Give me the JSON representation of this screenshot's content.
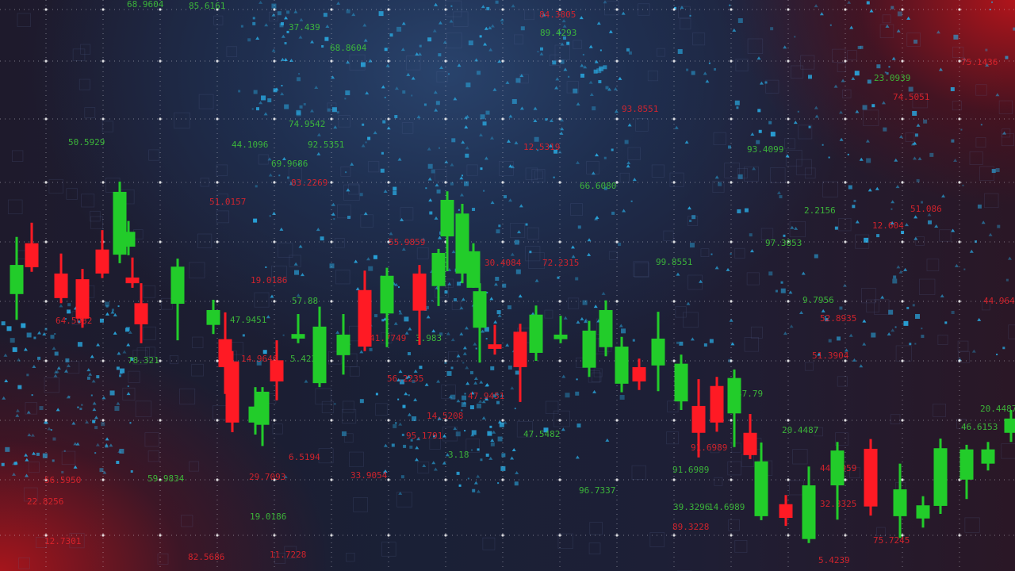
{
  "colors": {
    "up": "#22cc2a",
    "down": "#ff1a24",
    "background": "#1c2238",
    "accent_blue": "#29a8e0",
    "grid_dot": "#e8e8f0"
  },
  "chart_data": {
    "type": "candlestick",
    "title": "",
    "xlabel": "",
    "ylabel": "",
    "ylim": [
      0,
      100
    ],
    "grid": true,
    "legend": "none",
    "candles": [
      {
        "o": 48.5,
        "h": 58.5,
        "l": 44.0,
        "c": 53.6
      },
      {
        "o": 57.4,
        "h": 61.0,
        "l": 52.4,
        "c": 53.2
      },
      {
        "o": 52.1,
        "h": 55.6,
        "l": 46.9,
        "c": 47.8
      },
      {
        "o": 51.1,
        "h": 52.9,
        "l": 42.6,
        "c": 44.2
      },
      {
        "o": 56.3,
        "h": 59.7,
        "l": 51.3,
        "c": 52.1
      },
      {
        "o": 55.4,
        "h": 68.2,
        "l": 53.9,
        "c": 66.4
      },
      {
        "o": 56.8,
        "h": 61.3,
        "l": 55.3,
        "c": 59.4
      },
      {
        "o": 51.4,
        "h": 54.9,
        "l": 49.6,
        "c": 50.4
      },
      {
        "o": 46.9,
        "h": 50.4,
        "l": 39.9,
        "c": 43.2
      },
      {
        "o": 46.8,
        "h": 54.7,
        "l": 40.4,
        "c": 53.3
      },
      {
        "o": 43.1,
        "h": 47.5,
        "l": 41.5,
        "c": 45.7
      },
      {
        "o": 40.6,
        "h": 45.3,
        "l": 31.0,
        "c": 35.7
      },
      {
        "o": 36.7,
        "h": 38.5,
        "l": 24.3,
        "c": 26.0
      },
      {
        "o": 26.0,
        "h": 32.2,
        "l": 23.9,
        "c": 28.8
      },
      {
        "o": 25.6,
        "h": 32.2,
        "l": 21.9,
        "c": 31.4
      },
      {
        "o": 36.9,
        "h": 40.4,
        "l": 29.9,
        "c": 33.2
      },
      {
        "o": 40.7,
        "h": 45.0,
        "l": 39.9,
        "c": 41.5
      },
      {
        "o": 32.9,
        "h": 46.3,
        "l": 32.2,
        "c": 42.8
      },
      {
        "o": 37.8,
        "h": 45.0,
        "l": 34.4,
        "c": 41.4
      },
      {
        "o": 49.2,
        "h": 52.6,
        "l": 38.5,
        "c": 39.3
      },
      {
        "o": 45.1,
        "h": 53.1,
        "l": 39.2,
        "c": 51.7
      },
      {
        "o": 52.1,
        "h": 53.6,
        "l": 39.6,
        "c": 45.6
      },
      {
        "o": 49.9,
        "h": 56.4,
        "l": 46.4,
        "c": 55.7
      },
      {
        "o": 58.6,
        "h": 66.5,
        "l": 52.5,
        "c": 65.0
      },
      {
        "o": 52.1,
        "h": 64.3,
        "l": 50.4,
        "c": 62.6
      },
      {
        "o": 49.6,
        "h": 57.4,
        "l": 49.6,
        "c": 56.0
      },
      {
        "o": 42.6,
        "h": 50.4,
        "l": 36.5,
        "c": 49.0
      },
      {
        "o": 39.7,
        "h": 43.1,
        "l": 37.9,
        "c": 38.9
      },
      {
        "o": 41.9,
        "h": 43.3,
        "l": 29.6,
        "c": 35.7
      },
      {
        "o": 38.2,
        "h": 46.5,
        "l": 36.8,
        "c": 44.9
      },
      {
        "o": 40.6,
        "h": 44.7,
        "l": 39.9,
        "c": 41.4
      },
      {
        "o": 35.6,
        "h": 43.8,
        "l": 34.0,
        "c": 42.1
      },
      {
        "o": 39.2,
        "h": 47.4,
        "l": 37.6,
        "c": 45.7
      },
      {
        "o": 32.8,
        "h": 41.0,
        "l": 31.3,
        "c": 39.3
      },
      {
        "o": 35.7,
        "h": 37.2,
        "l": 31.7,
        "c": 33.2
      },
      {
        "o": 36.0,
        "h": 45.4,
        "l": 31.5,
        "c": 40.7
      },
      {
        "o": 29.7,
        "h": 37.9,
        "l": 28.2,
        "c": 36.3
      },
      {
        "o": 28.9,
        "h": 33.6,
        "l": 19.9,
        "c": 24.2
      },
      {
        "o": 32.4,
        "h": 34.0,
        "l": 24.4,
        "c": 26.0
      },
      {
        "o": 27.6,
        "h": 35.3,
        "l": 21.7,
        "c": 33.8
      },
      {
        "o": 24.2,
        "h": 27.5,
        "l": 19.6,
        "c": 20.3
      },
      {
        "o": 9.6,
        "h": 22.5,
        "l": 8.9,
        "c": 19.2
      },
      {
        "o": 11.7,
        "h": 13.3,
        "l": 7.9,
        "c": 9.3
      },
      {
        "o": 5.6,
        "h": 18.3,
        "l": 4.9,
        "c": 15.0
      },
      {
        "o": 15.0,
        "h": 22.6,
        "l": 9.0,
        "c": 21.1
      },
      {
        "o": 21.4,
        "h": 23.1,
        "l": 9.7,
        "c": 11.3
      },
      {
        "o": 9.6,
        "h": 18.8,
        "l": 5.8,
        "c": 14.3
      },
      {
        "o": 9.2,
        "h": 13.1,
        "l": 7.6,
        "c": 11.5
      },
      {
        "o": 11.4,
        "h": 23.2,
        "l": 10.0,
        "c": 21.5
      },
      {
        "o": 16.0,
        "h": 22.1,
        "l": 12.6,
        "c": 21.3
      },
      {
        "o": 18.8,
        "h": 22.6,
        "l": 17.6,
        "c": 21.3
      },
      {
        "o": 24.2,
        "h": 28.2,
        "l": 22.6,
        "c": 26.7
      }
    ],
    "annotations": [
      {
        "text": "68.9604",
        "color": "green"
      },
      {
        "text": "85.6161",
        "color": "green"
      },
      {
        "text": "37.439",
        "color": "green"
      },
      {
        "text": "68.8604",
        "color": "green"
      },
      {
        "text": "50.5929",
        "color": "green"
      },
      {
        "text": "92.5351",
        "color": "green"
      },
      {
        "text": "69.9686",
        "color": "green"
      },
      {
        "text": "44.1096",
        "color": "green"
      },
      {
        "text": "74.9542",
        "color": "green"
      },
      {
        "text": "83.2269",
        "color": "red"
      },
      {
        "text": "51.0157",
        "color": "red"
      },
      {
        "text": "19.0186",
        "color": "red"
      },
      {
        "text": "47.9451",
        "color": "green"
      },
      {
        "text": "78.321",
        "color": "green"
      },
      {
        "text": "64.5082",
        "color": "red"
      },
      {
        "text": "57.88",
        "color": "green"
      },
      {
        "text": "5.423",
        "color": "green"
      },
      {
        "text": "14.9640",
        "color": "red"
      },
      {
        "text": "55.9859",
        "color": "red"
      },
      {
        "text": "41.7749",
        "color": "red"
      },
      {
        "text": "3.983",
        "color": "green"
      },
      {
        "text": "56.2235",
        "color": "red"
      },
      {
        "text": "14.5208",
        "color": "red"
      },
      {
        "text": "95.1791",
        "color": "red"
      },
      {
        "text": "47.9451",
        "color": "red"
      },
      {
        "text": "30.4084",
        "color": "red"
      },
      {
        "text": "72.2315",
        "color": "red"
      },
      {
        "text": "99.8551",
        "color": "green"
      },
      {
        "text": "93.4099",
        "color": "green"
      },
      {
        "text": "97.3853",
        "color": "green"
      },
      {
        "text": "2.2156",
        "color": "green"
      },
      {
        "text": "9.7956",
        "color": "green"
      },
      {
        "text": "52.8935",
        "color": "red"
      },
      {
        "text": "51.3904",
        "color": "red"
      },
      {
        "text": "44.9647",
        "color": "red"
      },
      {
        "text": "20.4487",
        "color": "green"
      },
      {
        "text": "46.6153",
        "color": "green"
      },
      {
        "text": "20.4487",
        "color": "green"
      },
      {
        "text": "47.5482",
        "color": "green"
      },
      {
        "text": "91.6989",
        "color": "red"
      },
      {
        "text": "91.6989",
        "color": "green"
      },
      {
        "text": "96.7337",
        "color": "green"
      },
      {
        "text": "39.3296",
        "color": "green"
      },
      {
        "text": "14.6989",
        "color": "green"
      },
      {
        "text": "89.3228",
        "color": "red"
      },
      {
        "text": "44.5959",
        "color": "red"
      },
      {
        "text": "32.8325",
        "color": "red"
      },
      {
        "text": "75.7245",
        "color": "red"
      },
      {
        "text": "5.4239",
        "color": "red"
      },
      {
        "text": "82.5686",
        "color": "red"
      },
      {
        "text": "11.7228",
        "color": "red"
      },
      {
        "text": "19.0186",
        "color": "green"
      },
      {
        "text": "22.8256",
        "color": "red"
      },
      {
        "text": "12.7301",
        "color": "red"
      },
      {
        "text": "56.5950",
        "color": "red"
      },
      {
        "text": "59.9834",
        "color": "green"
      },
      {
        "text": "29.7093",
        "color": "red"
      },
      {
        "text": "33.9054",
        "color": "red"
      },
      {
        "text": "6.5194",
        "color": "red"
      },
      {
        "text": "3.18",
        "color": "green"
      },
      {
        "text": "23.0939",
        "color": "green"
      },
      {
        "text": "75.1436",
        "color": "red"
      },
      {
        "text": "74.5051",
        "color": "red"
      },
      {
        "text": "12.604",
        "color": "red"
      },
      {
        "text": "51.086",
        "color": "red"
      },
      {
        "text": "66.6080",
        "color": "green"
      },
      {
        "text": "93.8551",
        "color": "red"
      },
      {
        "text": "12.5319",
        "color": "red"
      },
      {
        "text": "89.4293",
        "color": "green"
      },
      {
        "text": "84.3805",
        "color": "red"
      },
      {
        "text": "37.79",
        "color": "green"
      }
    ]
  }
}
